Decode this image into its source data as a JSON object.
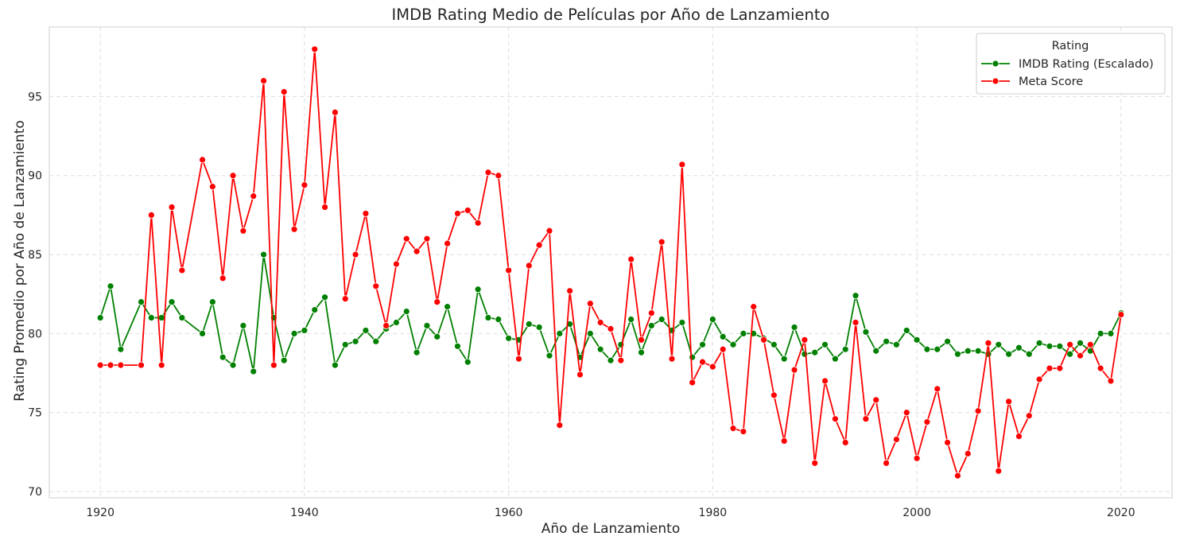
{
  "chart_data": {
    "type": "line",
    "title": "IMDB Rating Medio de Películas por Año de Lanzamiento",
    "xlabel": "Año de Lanzamiento",
    "ylabel": "Rating Promedio por Año de Lanzamiento",
    "xlim": [
      1915,
      2025
    ],
    "ylim": [
      69.6,
      99.4
    ],
    "xticks": [
      1920,
      1940,
      1960,
      1980,
      2000,
      2020
    ],
    "yticks": [
      70,
      75,
      80,
      85,
      90,
      95
    ],
    "grid": true,
    "legend": {
      "title": "Rating",
      "placement": "top-right"
    },
    "x": [
      1920,
      1921,
      1922,
      1924,
      1925,
      1926,
      1927,
      1928,
      1930,
      1931,
      1932,
      1933,
      1934,
      1935,
      1936,
      1937,
      1938,
      1939,
      1940,
      1941,
      1942,
      1943,
      1944,
      1945,
      1946,
      1947,
      1948,
      1949,
      1950,
      1951,
      1952,
      1953,
      1954,
      1955,
      1956,
      1957,
      1958,
      1959,
      1960,
      1961,
      1962,
      1963,
      1964,
      1965,
      1966,
      1967,
      1968,
      1969,
      1970,
      1971,
      1972,
      1973,
      1974,
      1975,
      1976,
      1977,
      1978,
      1979,
      1980,
      1981,
      1982,
      1983,
      1984,
      1985,
      1986,
      1987,
      1988,
      1989,
      1990,
      1991,
      1992,
      1993,
      1994,
      1995,
      1996,
      1997,
      1998,
      1999,
      2000,
      2001,
      2002,
      2003,
      2004,
      2005,
      2006,
      2007,
      2008,
      2009,
      2010,
      2011,
      2012,
      2013,
      2014,
      2015,
      2016,
      2017,
      2018,
      2019,
      2020
    ],
    "series": [
      {
        "name": "IMDB Rating (Escalado)",
        "color": "#008000",
        "values": [
          81.0,
          83.0,
          79.0,
          82.0,
          81.0,
          81.0,
          82.0,
          81.0,
          80.0,
          82.0,
          78.5,
          78.0,
          80.5,
          77.6,
          85.0,
          81.0,
          78.3,
          80.0,
          80.2,
          81.5,
          82.3,
          78.0,
          79.3,
          79.5,
          80.2,
          79.5,
          80.3,
          80.7,
          81.4,
          78.8,
          80.5,
          79.8,
          81.7,
          79.2,
          78.2,
          82.8,
          81.0,
          80.9,
          79.7,
          79.6,
          80.6,
          80.4,
          78.6,
          80.0,
          80.6,
          78.5,
          80.0,
          79.0,
          78.3,
          79.3,
          80.9,
          78.8,
          80.5,
          80.9,
          80.2,
          80.7,
          78.5,
          79.3,
          80.9,
          79.8,
          79.3,
          80.0,
          80.0,
          79.7,
          79.3,
          78.4,
          80.4,
          78.7,
          78.8,
          79.3,
          78.4,
          79.0,
          82.4,
          80.1,
          78.9,
          79.5,
          79.3,
          80.2,
          79.6,
          79.0,
          79.0,
          79.5,
          78.7,
          78.9,
          78.9,
          78.7,
          79.3,
          78.7,
          79.1,
          78.7,
          79.4,
          79.2,
          79.2,
          78.7,
          79.4,
          78.9,
          80.0,
          80.0,
          81.3
        ]
      },
      {
        "name": "Meta Score",
        "color": "#ff0000",
        "values": [
          78.0,
          78.0,
          78.0,
          78.0,
          87.5,
          78.0,
          88.0,
          84.0,
          91.0,
          89.3,
          83.5,
          90.0,
          86.5,
          88.7,
          96.0,
          78.0,
          95.3,
          86.6,
          89.4,
          98.0,
          88.0,
          94.0,
          82.2,
          85.0,
          87.6,
          83.0,
          80.5,
          84.4,
          86.0,
          85.2,
          86.0,
          82.0,
          85.7,
          87.6,
          87.8,
          87.0,
          90.2,
          90.0,
          84.0,
          78.4,
          84.3,
          85.6,
          86.5,
          74.2,
          82.7,
          77.4,
          81.9,
          80.7,
          80.3,
          78.3,
          84.7,
          79.6,
          81.3,
          85.8,
          78.4,
          90.7,
          76.9,
          78.2,
          77.9,
          79.0,
          74.0,
          73.8,
          81.7,
          79.6,
          76.1,
          73.2,
          77.7,
          79.6,
          71.8,
          77.0,
          74.6,
          73.1,
          80.7,
          74.6,
          75.8,
          71.8,
          73.3,
          75.0,
          72.1,
          74.4,
          76.5,
          73.1,
          71.0,
          72.4,
          75.1,
          79.4,
          71.3,
          75.7,
          73.5,
          74.8,
          77.1,
          77.8,
          77.8,
          79.3,
          78.6,
          79.3,
          77.8,
          77.0,
          81.2
        ]
      }
    ]
  }
}
